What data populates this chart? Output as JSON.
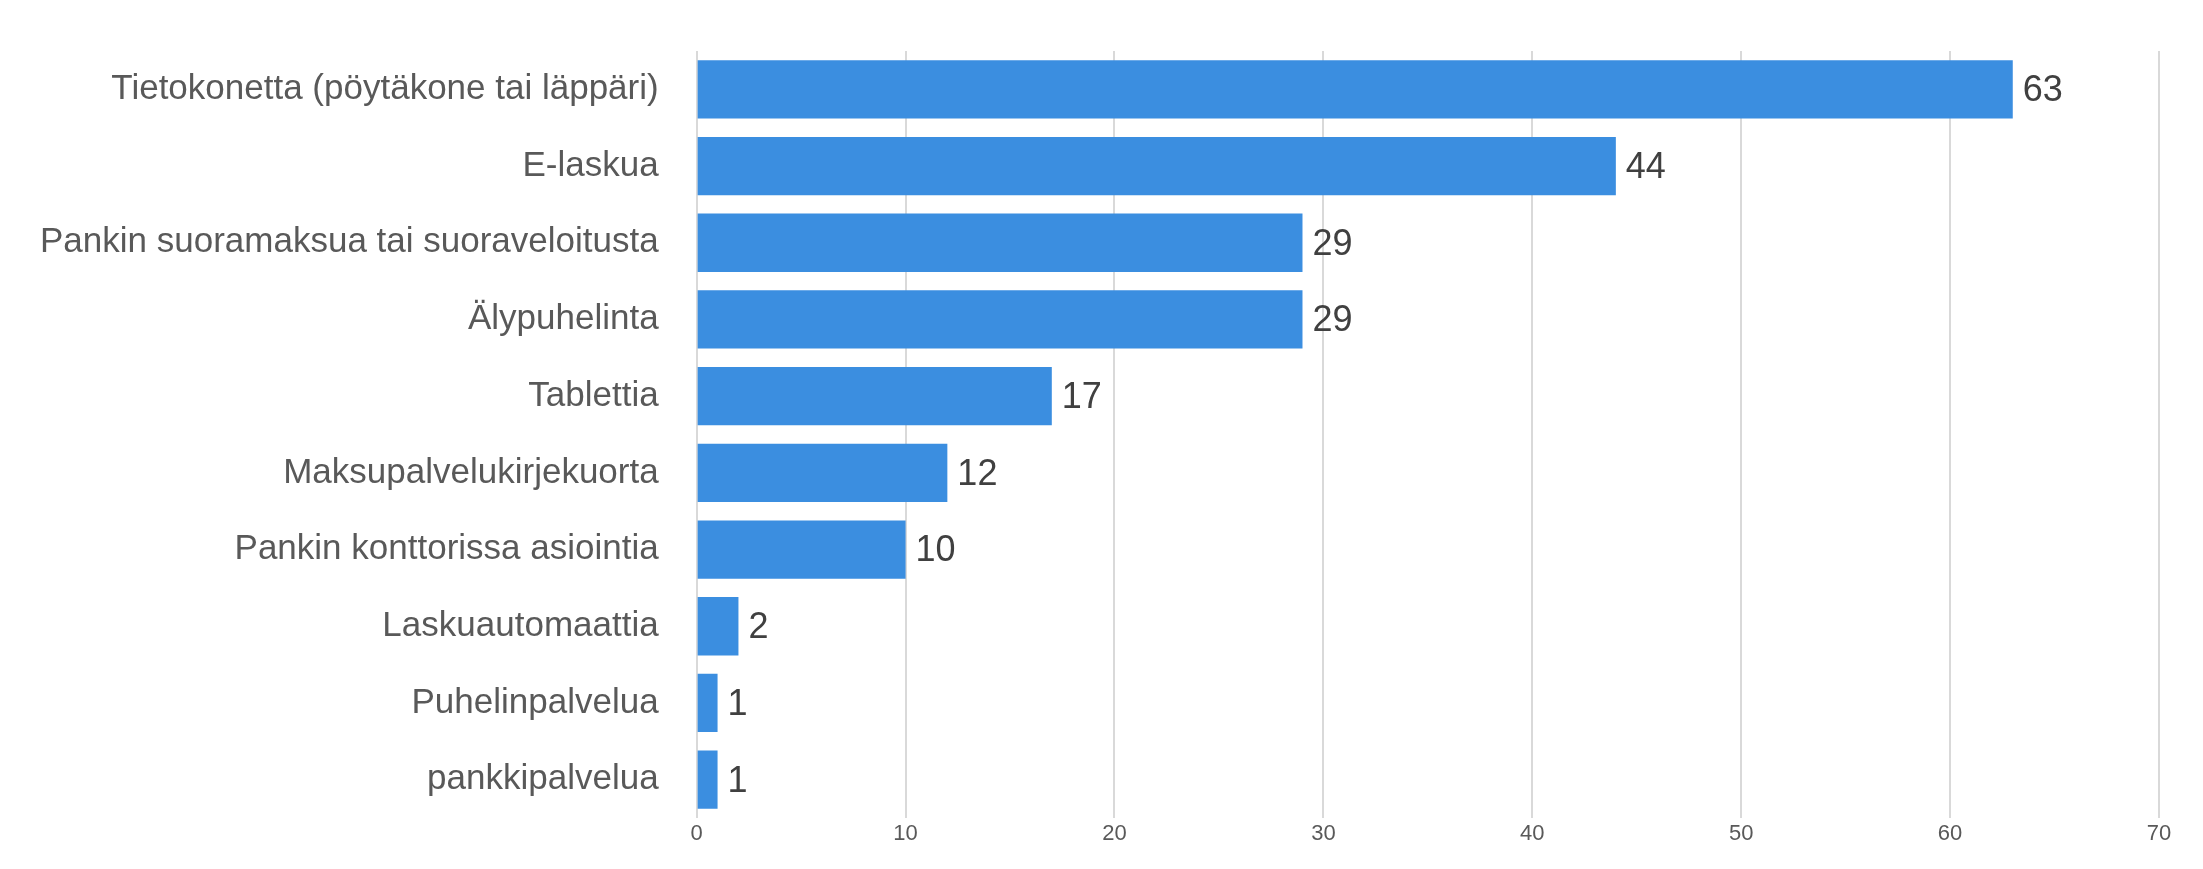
{
  "chart_data": {
    "type": "bar",
    "orientation": "horizontal",
    "categories": [
      "Tietokonetta (pöytäkone tai läppäri)",
      "E-laskua",
      "Pankin suoramaksua tai suoraveloitusta",
      "Älypuhelinta",
      "Tablettia",
      "Maksupalvelukirjekuorta",
      "Pankin konttorissa asiointia",
      "Laskuautomaattia",
      "Puhelinpalvelua",
      "pankkipalvelua"
    ],
    "values": [
      63,
      44,
      29,
      29,
      17,
      12,
      10,
      2,
      1,
      1
    ],
    "color": "#3b8ee0",
    "xlim": [
      0,
      70
    ],
    "xticks": [
      0,
      10,
      20,
      30,
      40,
      50,
      60,
      70
    ],
    "grid": "x",
    "legend": false,
    "data_labels": true
  }
}
